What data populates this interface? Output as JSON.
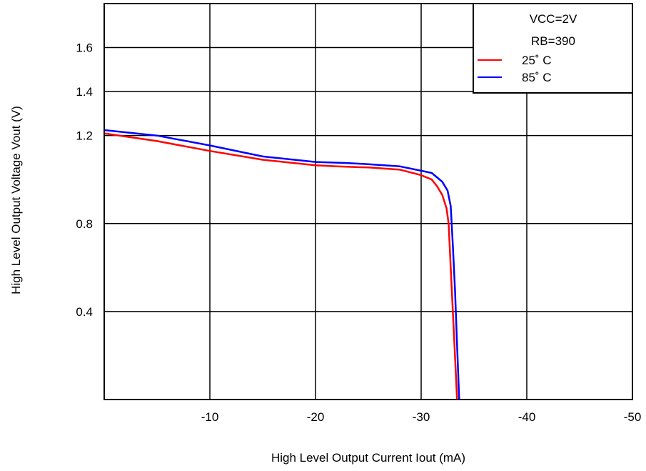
{
  "chart_data": {
    "type": "line",
    "xlabel": "High Level Output Current Iout (mA)",
    "ylabel": "High Level Output Voltage Vout (V)",
    "xlim": [
      0,
      -50
    ],
    "ylim": [
      0,
      1.8
    ],
    "x_ticks": [
      -10,
      -20,
      -30,
      -40,
      -50
    ],
    "x_tick_labels": [
      "-10",
      "-20",
      "-30",
      "-40",
      "-50"
    ],
    "y_ticks": [
      0.4,
      0.8,
      1.2,
      1.4,
      1.6
    ],
    "y_tick_labels": [
      "0.4",
      "0.8",
      "1.2",
      "1.4",
      "1.6"
    ],
    "grid": true,
    "legend": {
      "position": "top-right",
      "conditions": [
        "VCC=2V",
        "RB=390"
      ]
    },
    "series": [
      {
        "name": "25° C",
        "label": "25˚ C",
        "color": "#ff0000",
        "x": [
          0,
          -5,
          -10,
          -15,
          -20,
          -22,
          -25,
          -28,
          -30,
          -31,
          -31.5,
          -32,
          -32.4,
          -32.6,
          -32.8,
          -33,
          -33.2,
          -33.4
        ],
        "y": [
          1.21,
          1.175,
          1.13,
          1.09,
          1.065,
          1.06,
          1.055,
          1.045,
          1.02,
          1.0,
          0.97,
          0.93,
          0.87,
          0.8,
          0.6,
          0.4,
          0.2,
          0.0
        ]
      },
      {
        "name": "85° C",
        "label": "85˚ C",
        "color": "#0000ff",
        "x": [
          0,
          -5,
          -10,
          -15,
          -20,
          -23,
          -25,
          -28,
          -30,
          -31,
          -31.5,
          -32,
          -32.5,
          -32.8,
          -33,
          -33.2,
          -33.4,
          -33.6
        ],
        "y": [
          1.225,
          1.2,
          1.155,
          1.105,
          1.08,
          1.075,
          1.07,
          1.06,
          1.04,
          1.03,
          1.01,
          0.99,
          0.95,
          0.88,
          0.7,
          0.5,
          0.25,
          0.0
        ]
      }
    ]
  }
}
